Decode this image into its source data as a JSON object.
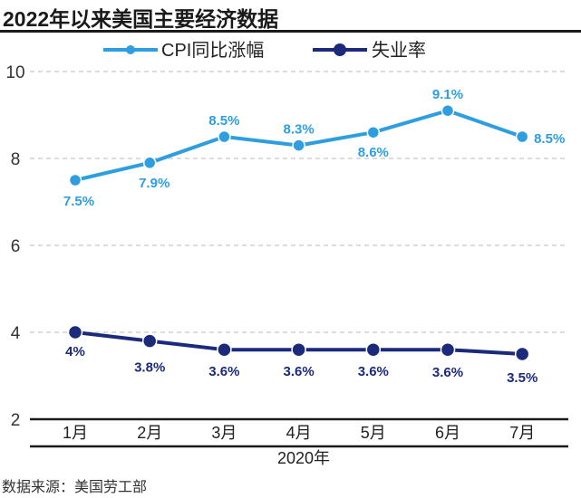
{
  "title": "2022年以来美国主要经济数据",
  "source": "数据来源：美国劳工部",
  "chart_data": {
    "type": "line",
    "title": "2022年以来美国主要经济数据",
    "xlabel": "2020年",
    "ylabel": "",
    "categories": [
      "1月",
      "2月",
      "3月",
      "4月",
      "5月",
      "6月",
      "7月"
    ],
    "ylim": [
      2,
      10
    ],
    "yticks": [
      2,
      4,
      6,
      8,
      10
    ],
    "grid": true,
    "legend_position": "top",
    "series": [
      {
        "name": "CPI同比涨幅",
        "color": "#2f9ede",
        "values": [
          7.5,
          7.9,
          8.5,
          8.3,
          8.6,
          9.1,
          8.5
        ],
        "labels": [
          "7.5%",
          "7.9%",
          "8.5%",
          "8.3%",
          "8.6%",
          "9.1%",
          "8.5%"
        ]
      },
      {
        "name": "失业率",
        "color": "#1b2a7a",
        "values": [
          4.0,
          3.8,
          3.6,
          3.6,
          3.6,
          3.6,
          3.5
        ],
        "labels": [
          "4%",
          "3.8%",
          "3.6%",
          "3.6%",
          "3.6%",
          "3.6%",
          "3.5%"
        ]
      }
    ]
  }
}
